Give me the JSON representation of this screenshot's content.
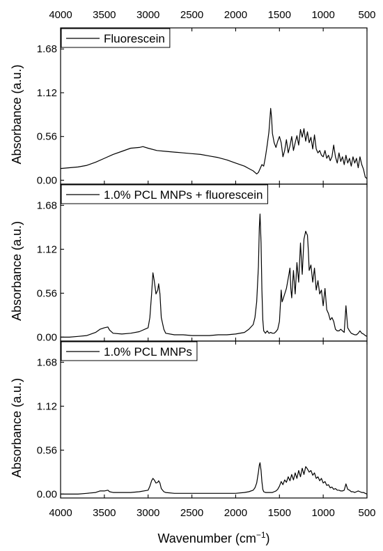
{
  "chart_data": {
    "type": "line",
    "xlabel": "Wavenumber (cm",
    "xlabel_superscript": "−1",
    "xlabel_suffix": ")",
    "ylabel": "Absorbance (a.u.)",
    "xlim": [
      4000,
      500
    ],
    "ylim": [
      -0.05,
      1.95
    ],
    "x_ticks": [
      4000,
      3500,
      3000,
      2500,
      2000,
      1500,
      1000,
      500
    ],
    "y_ticks": [
      "0.00",
      "0.56",
      "1.12",
      "1.68"
    ],
    "panels": [
      {
        "name": "Fluorescein",
        "legend_placement": "top-left",
        "series": [
          {
            "name": "Fluorescein",
            "x": [
              4000,
              3900,
              3800,
              3700,
              3600,
              3500,
              3400,
              3300,
              3200,
              3100,
              3060,
              3000,
              2900,
              2800,
              2700,
              2600,
              2500,
              2400,
              2300,
              2200,
              2100,
              2000,
              1900,
              1850,
              1800,
              1780,
              1760,
              1740,
              1720,
              1700,
              1680,
              1660,
              1640,
              1620,
              1600,
              1590,
              1580,
              1560,
              1540,
              1520,
              1500,
              1480,
              1460,
              1440,
              1420,
              1400,
              1380,
              1360,
              1340,
              1320,
              1300,
              1280,
              1260,
              1240,
              1220,
              1200,
              1180,
              1160,
              1140,
              1120,
              1100,
              1080,
              1060,
              1040,
              1020,
              1000,
              980,
              960,
              940,
              920,
              900,
              880,
              860,
              840,
              820,
              800,
              780,
              760,
              740,
              720,
              700,
              680,
              660,
              640,
              620,
              600,
              580,
              560,
              540,
              520,
              500
            ],
            "y": [
              0.15,
              0.16,
              0.17,
              0.19,
              0.23,
              0.28,
              0.33,
              0.37,
              0.41,
              0.42,
              0.43,
              0.41,
              0.38,
              0.37,
              0.36,
              0.35,
              0.34,
              0.33,
              0.31,
              0.29,
              0.26,
              0.22,
              0.18,
              0.15,
              0.12,
              0.1,
              0.08,
              0.1,
              0.15,
              0.2,
              0.18,
              0.3,
              0.45,
              0.62,
              0.92,
              0.8,
              0.6,
              0.48,
              0.42,
              0.5,
              0.56,
              0.48,
              0.3,
              0.38,
              0.52,
              0.35,
              0.44,
              0.56,
              0.38,
              0.48,
              0.57,
              0.45,
              0.65,
              0.55,
              0.66,
              0.5,
              0.62,
              0.48,
              0.55,
              0.4,
              0.58,
              0.4,
              0.35,
              0.38,
              0.32,
              0.3,
              0.38,
              0.28,
              0.32,
              0.25,
              0.3,
              0.45,
              0.3,
              0.22,
              0.35,
              0.24,
              0.3,
              0.2,
              0.32,
              0.22,
              0.28,
              0.18,
              0.3,
              0.22,
              0.28,
              0.16,
              0.3,
              0.2,
              0.14,
              0.04,
              0.02
            ]
          }
        ]
      },
      {
        "name": "1.0% PCL MNPs + fluorescein",
        "legend_placement": "top-left",
        "series": [
          {
            "name": "1.0% PCL MNPs + fluorescein",
            "x": [
              4000,
              3900,
              3800,
              3700,
              3600,
              3550,
              3500,
              3460,
              3440,
              3400,
              3300,
              3200,
              3100,
              3000,
              2980,
              2960,
              2945,
              2930,
              2910,
              2890,
              2880,
              2865,
              2850,
              2820,
              2800,
              2700,
              2600,
              2500,
              2400,
              2300,
              2200,
              2100,
              2000,
              1900,
              1850,
              1800,
              1780,
              1760,
              1740,
              1730,
              1722,
              1710,
              1700,
              1690,
              1680,
              1660,
              1640,
              1620,
              1600,
              1580,
              1560,
              1540,
              1520,
              1500,
              1480,
              1470,
              1460,
              1440,
              1420,
              1400,
              1380,
              1370,
              1360,
              1340,
              1320,
              1300,
              1280,
              1260,
              1240,
              1220,
              1200,
              1190,
              1180,
              1170,
              1160,
              1140,
              1120,
              1100,
              1080,
              1060,
              1040,
              1020,
              1000,
              980,
              960,
              940,
              920,
              900,
              880,
              860,
              840,
              820,
              800,
              780,
              760,
              740,
              720,
              700,
              680,
              660,
              640,
              620,
              600,
              580,
              560,
              540,
              520,
              500
            ],
            "y": [
              0.0,
              0.0,
              0.01,
              0.02,
              0.06,
              0.1,
              0.12,
              0.13,
              0.09,
              0.05,
              0.04,
              0.05,
              0.07,
              0.12,
              0.25,
              0.55,
              0.82,
              0.72,
              0.55,
              0.6,
              0.68,
              0.55,
              0.25,
              0.1,
              0.05,
              0.03,
              0.03,
              0.02,
              0.02,
              0.02,
              0.03,
              0.03,
              0.04,
              0.06,
              0.1,
              0.16,
              0.25,
              0.45,
              0.9,
              1.4,
              1.57,
              1.2,
              0.6,
              0.22,
              0.08,
              0.05,
              0.08,
              0.05,
              0.06,
              0.05,
              0.05,
              0.07,
              0.1,
              0.2,
              0.6,
              0.45,
              0.48,
              0.55,
              0.62,
              0.75,
              0.88,
              0.62,
              0.5,
              0.85,
              0.55,
              0.95,
              0.7,
              1.2,
              0.8,
              1.25,
              1.35,
              1.32,
              1.3,
              1.1,
              0.85,
              0.92,
              0.7,
              0.88,
              0.6,
              0.72,
              0.55,
              0.6,
              0.4,
              0.62,
              0.35,
              0.3,
              0.22,
              0.25,
              0.2,
              0.1,
              0.08,
              0.08,
              0.1,
              0.08,
              0.06,
              0.4,
              0.12,
              0.08,
              0.05,
              0.04,
              0.03,
              0.03,
              0.05,
              0.08,
              0.05,
              0.04,
              0.02,
              0.01
            ]
          }
        ]
      },
      {
        "name": "1.0% PCL MNPs",
        "legend_placement": "top-left",
        "series": [
          {
            "name": "1.0% PCL MNPs",
            "x": [
              4000,
              3900,
              3800,
              3700,
              3600,
              3550,
              3500,
              3460,
              3440,
              3400,
              3300,
              3200,
              3100,
              3000,
              2980,
              2960,
              2945,
              2930,
              2910,
              2890,
              2880,
              2865,
              2850,
              2820,
              2800,
              2700,
              2600,
              2500,
              2400,
              2300,
              2200,
              2100,
              2000,
              1900,
              1850,
              1800,
              1780,
              1760,
              1740,
              1730,
              1722,
              1710,
              1700,
              1690,
              1680,
              1660,
              1640,
              1620,
              1600,
              1580,
              1560,
              1540,
              1520,
              1500,
              1480,
              1460,
              1440,
              1420,
              1400,
              1380,
              1360,
              1340,
              1320,
              1300,
              1280,
              1260,
              1240,
              1220,
              1200,
              1180,
              1160,
              1140,
              1120,
              1100,
              1080,
              1060,
              1040,
              1020,
              1000,
              980,
              960,
              940,
              920,
              900,
              880,
              860,
              840,
              820,
              800,
              780,
              760,
              740,
              720,
              700,
              680,
              660,
              640,
              620,
              600,
              580,
              560,
              540,
              520,
              500
            ],
            "y": [
              0.0,
              0.0,
              0.0,
              0.01,
              0.02,
              0.04,
              0.04,
              0.05,
              0.03,
              0.02,
              0.02,
              0.02,
              0.03,
              0.05,
              0.1,
              0.17,
              0.2,
              0.18,
              0.14,
              0.15,
              0.17,
              0.14,
              0.07,
              0.03,
              0.02,
              0.01,
              0.01,
              0.01,
              0.01,
              0.01,
              0.01,
              0.01,
              0.01,
              0.02,
              0.03,
              0.05,
              0.08,
              0.14,
              0.28,
              0.37,
              0.4,
              0.3,
              0.16,
              0.06,
              0.03,
              0.02,
              0.02,
              0.02,
              0.02,
              0.02,
              0.03,
              0.04,
              0.06,
              0.1,
              0.16,
              0.12,
              0.18,
              0.15,
              0.22,
              0.17,
              0.25,
              0.18,
              0.27,
              0.2,
              0.3,
              0.22,
              0.33,
              0.25,
              0.35,
              0.32,
              0.28,
              0.3,
              0.24,
              0.27,
              0.2,
              0.22,
              0.17,
              0.2,
              0.14,
              0.16,
              0.11,
              0.12,
              0.08,
              0.09,
              0.06,
              0.07,
              0.05,
              0.05,
              0.04,
              0.04,
              0.05,
              0.13,
              0.06,
              0.05,
              0.03,
              0.03,
              0.02,
              0.03,
              0.04,
              0.03,
              0.02,
              0.02,
              0.01,
              0.0
            ]
          }
        ]
      }
    ]
  }
}
